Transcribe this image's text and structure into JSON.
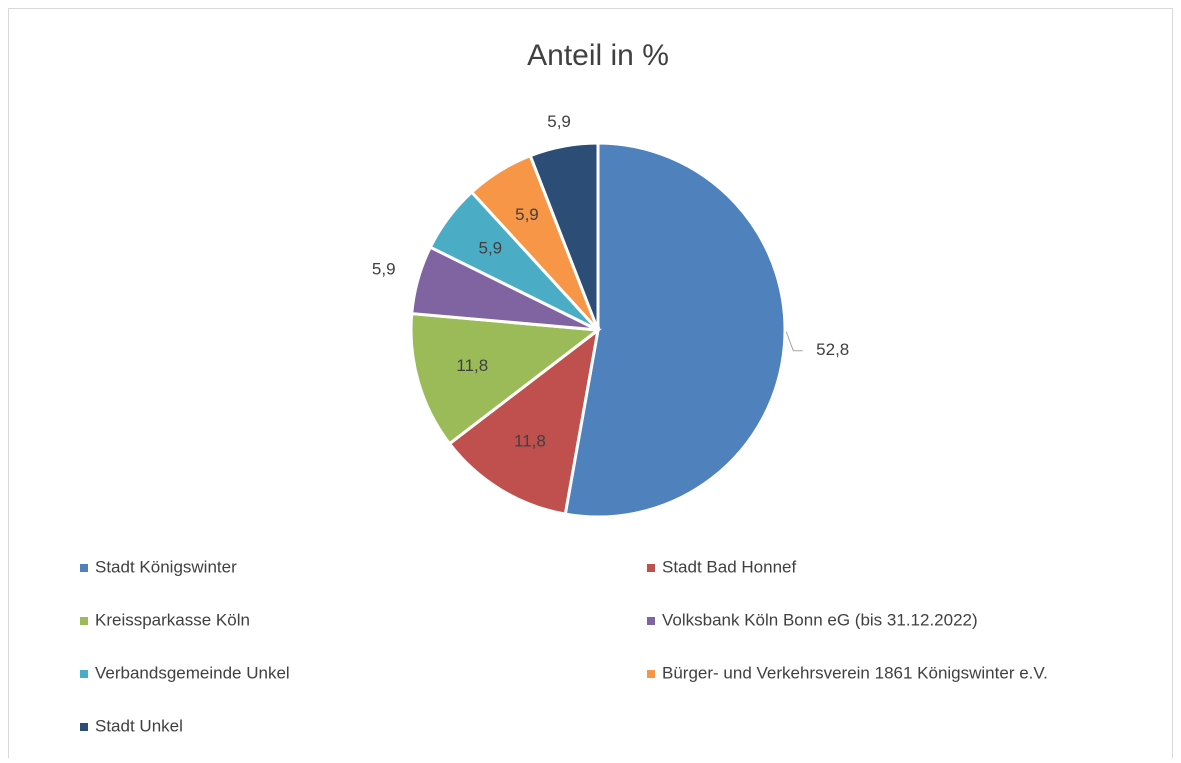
{
  "chart_data": {
    "type": "pie",
    "title": "Anteil in %",
    "categories": [
      "Stadt Königswinter",
      "Stadt Bad Honnef",
      "Kreissparkasse Köln",
      "Volksbank Köln Bonn eG (bis 31.12.2022)",
      "Verbandsgemeinde Unkel",
      "Bürger- und Verkehrsverein 1861 Königswinter e.V.",
      "Stadt Unkel"
    ],
    "values": [
      52.8,
      11.8,
      11.8,
      5.9,
      5.9,
      5.9,
      5.9
    ],
    "value_labels": [
      "52,8",
      "11,8",
      "11,8",
      "5,9",
      "5,9",
      "5,9",
      "5,9"
    ],
    "colors": [
      "#4f81bd",
      "#c0504d",
      "#9bbb59",
      "#8064a2",
      "#4bacc6",
      "#f79646",
      "#2c4d75"
    ],
    "legend": "bottom"
  }
}
